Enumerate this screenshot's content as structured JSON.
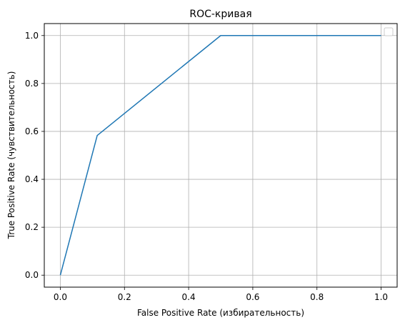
{
  "chart_data": {
    "type": "line",
    "title": "ROC-кривая",
    "xlabel": "False Positive Rate (избирательность)",
    "ylabel": "True Positive Rate (чувствительность)",
    "xlim": [
      -0.05,
      1.05
    ],
    "ylim": [
      -0.05,
      1.05
    ],
    "grid": true,
    "legend": {
      "placement": "top-right",
      "entries": []
    },
    "x_ticks": [
      0.0,
      0.2,
      0.4,
      0.6,
      0.8,
      1.0
    ],
    "x_tick_labels": [
      "0.0",
      "0.2",
      "0.4",
      "0.6",
      "0.8",
      "1.0"
    ],
    "y_ticks": [
      0.0,
      0.2,
      0.4,
      0.6,
      0.8,
      1.0
    ],
    "y_tick_labels": [
      "0.0",
      "0.2",
      "0.4",
      "0.6",
      "0.8",
      "1.0"
    ],
    "series": [
      {
        "color": "#1f77b4",
        "x": [
          0.0,
          0.115,
          0.5,
          1.0
        ],
        "y": [
          0.0,
          0.583,
          1.0,
          1.0
        ]
      }
    ]
  }
}
